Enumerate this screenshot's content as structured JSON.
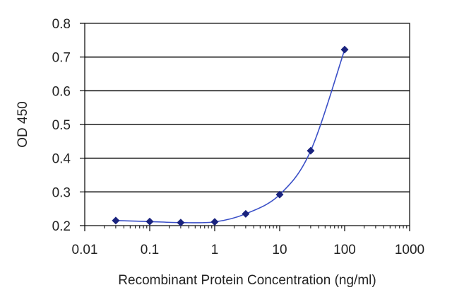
{
  "chart_data": {
    "type": "scatter",
    "title": "",
    "xlabel": "Recombinant Protein Concentration (ng/ml)",
    "ylabel": "OD 450",
    "x_scale": "log",
    "xlim": [
      0.01,
      1000
    ],
    "ylim": [
      0.2,
      0.8
    ],
    "x_ticks": [
      0.01,
      0.1,
      1,
      10,
      100,
      1000
    ],
    "x_tick_labels": [
      "0.01",
      "0.1",
      "1",
      "10",
      "100",
      "1000"
    ],
    "y_ticks": [
      0.2,
      0.3,
      0.4,
      0.5,
      0.6,
      0.7,
      0.8
    ],
    "y_tick_labels": [
      "0.2",
      "0.3",
      "0.4",
      "0.5",
      "0.6",
      "0.7",
      "0.8"
    ],
    "grid": "horizontal",
    "legend": "none",
    "series": [
      {
        "x": [
          0.03,
          0.1,
          0.3,
          1,
          3,
          10,
          30,
          100
        ],
        "y": [
          0.215,
          0.212,
          0.209,
          0.211,
          0.235,
          0.292,
          0.422,
          0.722
        ],
        "marker": "diamond",
        "color": "#1a237e",
        "line": "smooth"
      }
    ],
    "colors": {
      "marker": "#1a237e",
      "line": "#3a4fc7",
      "grid": "#1a1a1a",
      "axis": "#000000"
    }
  }
}
